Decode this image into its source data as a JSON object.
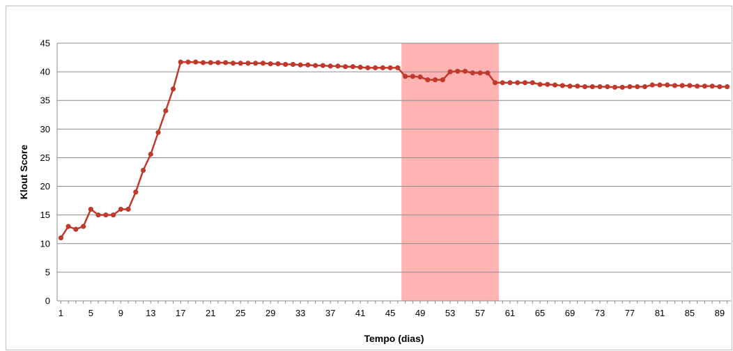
{
  "chart_data": {
    "type": "line",
    "title": "",
    "xlabel": "Tempo (dias)",
    "ylabel": "Klout Score",
    "ylim": [
      0,
      45
    ],
    "yticks": [
      0,
      5,
      10,
      15,
      20,
      25,
      30,
      35,
      40,
      45
    ],
    "xlim": [
      1,
      90
    ],
    "xtick_labels": [
      1,
      5,
      9,
      13,
      17,
      21,
      25,
      29,
      33,
      37,
      41,
      45,
      49,
      53,
      57,
      61,
      65,
      69,
      73,
      77,
      81,
      85,
      89
    ],
    "grid": "horizontal",
    "legend": "none",
    "highlight": {
      "x_start": 46.5,
      "x_end": 59.5,
      "color": "#ffb3b3"
    },
    "line_color": "#c0392b",
    "series": [
      {
        "x": [
          1,
          2,
          3,
          4,
          5,
          6,
          7,
          8,
          9,
          10,
          11,
          12,
          13,
          14,
          15,
          16,
          17,
          18,
          19,
          20,
          21,
          22,
          23,
          24,
          25,
          26,
          27,
          28,
          29,
          30,
          31,
          32,
          33,
          34,
          35,
          36,
          37,
          38,
          39,
          40,
          41,
          42,
          43,
          44,
          45,
          46,
          47,
          48,
          49,
          50,
          51,
          52,
          53,
          54,
          55,
          56,
          57,
          58,
          59,
          60,
          61,
          62,
          63,
          64,
          65,
          66,
          67,
          68,
          69,
          70,
          71,
          72,
          73,
          74,
          75,
          76,
          77,
          78,
          79,
          80,
          81,
          82,
          83,
          84,
          85,
          86,
          87,
          88,
          89,
          90
        ],
        "values": [
          11,
          13,
          12.5,
          13,
          16,
          15,
          15,
          15,
          16,
          16,
          19,
          22.8,
          25.6,
          29.4,
          33.2,
          37,
          41.7,
          41.7,
          41.7,
          41.6,
          41.6,
          41.6,
          41.6,
          41.5,
          41.5,
          41.5,
          41.5,
          41.5,
          41.4,
          41.4,
          41.3,
          41.3,
          41.2,
          41.2,
          41.1,
          41.1,
          41.0,
          41.0,
          40.9,
          40.9,
          40.8,
          40.7,
          40.7,
          40.7,
          40.7,
          40.7,
          39.2,
          39.2,
          39.1,
          38.6,
          38.6,
          38.6,
          40.0,
          40.1,
          40.1,
          39.8,
          39.8,
          39.8,
          38.1,
          38.1,
          38.1,
          38.1,
          38.1,
          38.1,
          37.8,
          37.8,
          37.7,
          37.6,
          37.5,
          37.5,
          37.4,
          37.4,
          37.4,
          37.4,
          37.3,
          37.3,
          37.4,
          37.4,
          37.4,
          37.7,
          37.7,
          37.7,
          37.6,
          37.6,
          37.6,
          37.5,
          37.5,
          37.5,
          37.4,
          37.4
        ]
      }
    ]
  }
}
